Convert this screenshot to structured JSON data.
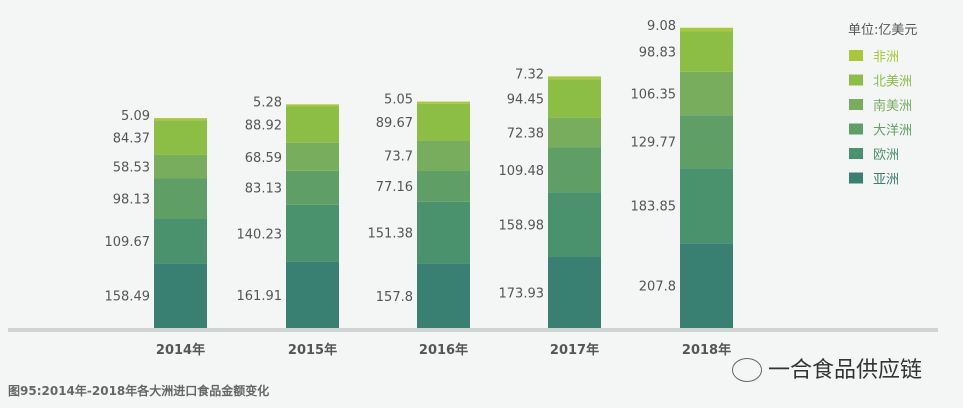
{
  "chart_data": {
    "type": "bar",
    "stacked": true,
    "title": "图95:2014年-2018年各大洲进口食品金额变化",
    "unit_label": "单位:亿美元",
    "categories": [
      "2014年",
      "2015年",
      "2016年",
      "2017年",
      "2018年"
    ],
    "series": [
      {
        "name": "亚洲",
        "color": "#3a8072",
        "values": [
          158.49,
          161.91,
          157.8,
          173.93,
          207.8
        ]
      },
      {
        "name": "欧洲",
        "color": "#4a916e",
        "values": [
          109.67,
          140.23,
          151.38,
          158.98,
          183.85
        ]
      },
      {
        "name": "大洋洲",
        "color": "#5f9f66",
        "values": [
          98.13,
          83.13,
          77.16,
          109.48,
          129.77
        ]
      },
      {
        "name": "南美洲",
        "color": "#79ad5e",
        "values": [
          58.53,
          68.59,
          73.7,
          72.38,
          106.35
        ]
      },
      {
        "name": "北美洲",
        "color": "#8cbd45",
        "values": [
          84.37,
          88.92,
          89.67,
          94.45,
          98.83
        ]
      },
      {
        "name": "非洲",
        "color": "#a8c83a",
        "values": [
          5.09,
          5.28,
          5.05,
          7.32,
          9.08
        ]
      }
    ],
    "ylim": [
      0,
      740
    ],
    "grid": false,
    "legend_position": "top-right"
  },
  "watermark": "一合食品供应链"
}
